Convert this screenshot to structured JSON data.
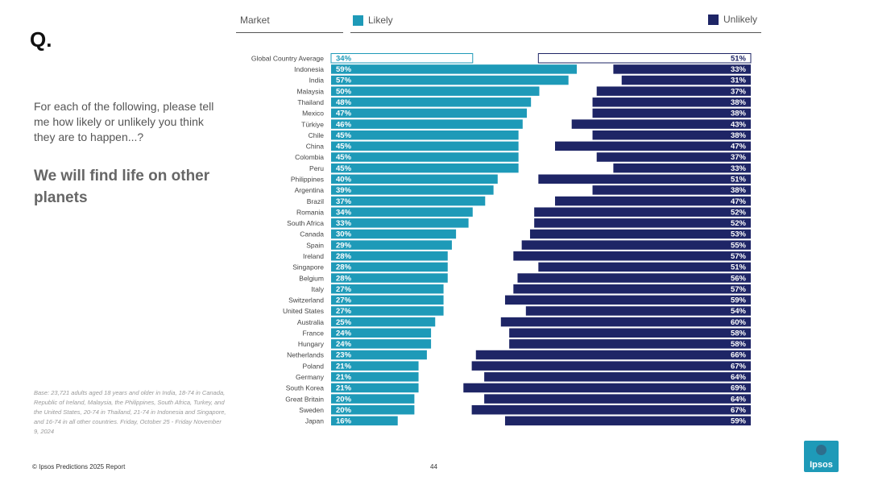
{
  "page": {
    "q_label": "Q.",
    "question": "For each of the following, please tell me how likely or unlikely you think they are to happen...?",
    "statement": "We will find life on other planets",
    "base_note": "Base: 23,721 adults aged 18 years and older in India, 18-74 in Canada, Republic of Ireland, Malaysia, the Philippines, South Africa, Turkey, and the United States, 20-74 in Thailand, 21-74 in Indonesia and Singapore, and 16-74 in all other countries. Friday, October 25 - Friday November 9, 2024",
    "footer_left": "© Ipsos Predictions 2025 Report",
    "page_number": "44",
    "logo_text": "Ipsos"
  },
  "colors": {
    "likely": "#1e9ab8",
    "unlikely": "#1e2566",
    "average_fill": "#ffffff"
  },
  "chart_data": {
    "type": "bar",
    "header_market": "Market",
    "legend_likely": "Likely",
    "legend_unlikely": "Unlikely",
    "categories": [
      "Global Country Average",
      "Indonesia",
      "India",
      "Malaysia",
      "Thailand",
      "Mexico",
      "Türkiye",
      "Chile",
      "China",
      "Colombia",
      "Peru",
      "Philippines",
      "Argentina",
      "Brazil",
      "Romania",
      "South Africa",
      "Canada",
      "Spain",
      "Ireland",
      "Singapore",
      "Belgium",
      "Italy",
      "Switzerland",
      "United States",
      "Australia",
      "France",
      "Hungary",
      "Netherlands",
      "Poland",
      "Germany",
      "South Korea",
      "Great Britain",
      "Sweden",
      "Japan"
    ],
    "series": [
      {
        "name": "Likely",
        "values": [
          34,
          59,
          57,
          50,
          48,
          47,
          46,
          45,
          45,
          45,
          45,
          40,
          39,
          37,
          34,
          33,
          30,
          29,
          28,
          28,
          28,
          27,
          27,
          27,
          25,
          24,
          24,
          23,
          21,
          21,
          21,
          20,
          20,
          16
        ]
      },
      {
        "name": "Unlikely",
        "values": [
          51,
          33,
          31,
          37,
          38,
          38,
          43,
          38,
          47,
          37,
          33,
          51,
          38,
          47,
          52,
          52,
          53,
          55,
          57,
          51,
          56,
          57,
          59,
          54,
          60,
          58,
          58,
          66,
          67,
          64,
          69,
          64,
          67,
          59
        ]
      }
    ],
    "labels_likely": [
      "34%",
      "59%",
      "57%",
      "50%",
      "48%",
      "47%",
      "46%",
      "45%",
      "45%",
      "45%",
      "45%",
      "40%",
      "39%",
      "37%",
      "34%",
      "33%",
      "30%",
      "29%",
      "28%",
      "28%",
      "28%",
      "27%",
      "27%",
      "27%",
      "25%",
      "24%",
      "24%",
      "23%",
      "21%",
      "21%",
      "21%",
      "20%",
      "20%",
      "16%"
    ],
    "labels_unlikely": [
      "51%",
      "33%",
      "31%",
      "37%",
      "38%",
      "38%",
      "43%",
      "38%",
      "47%",
      "37%",
      "33%",
      "51%",
      "38%",
      "47%",
      "52%",
      "52%",
      "53%",
      "55%",
      "57%",
      "51%",
      "56%",
      "57%",
      "59%",
      "54%",
      "60%",
      "58%",
      "58%",
      "66%",
      "67%",
      "64%",
      "69%",
      "64%",
      "67%",
      "59%"
    ],
    "xlim": [
      0,
      100
    ]
  }
}
